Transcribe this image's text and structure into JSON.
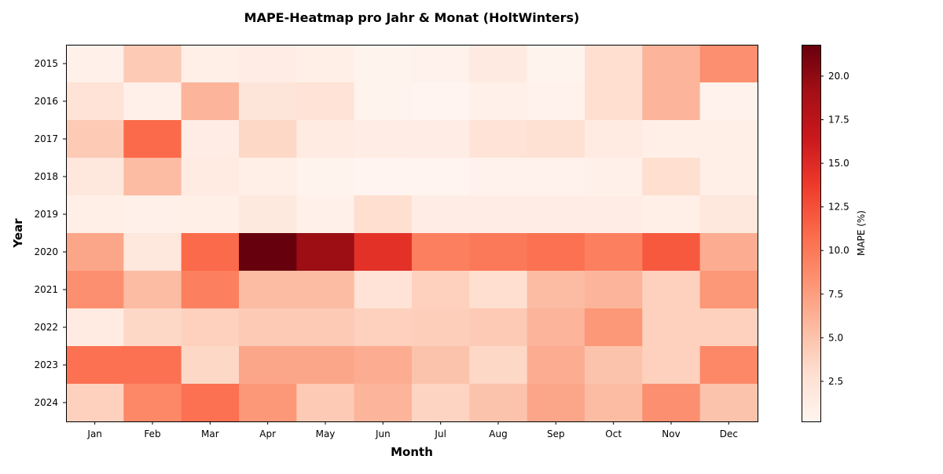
{
  "chart_data": {
    "type": "heatmap",
    "title": "MAPE-Heatmap pro Jahr & Monat (HoltWinters)",
    "xlabel": "Month",
    "ylabel": "Year",
    "x_categories": [
      "Jan",
      "Feb",
      "Mar",
      "Apr",
      "May",
      "Jun",
      "Jul",
      "Aug",
      "Sep",
      "Oct",
      "Nov",
      "Dec"
    ],
    "y_categories": [
      "2015",
      "2016",
      "2017",
      "2018",
      "2019",
      "2020",
      "2021",
      "2022",
      "2023",
      "2024"
    ],
    "values": [
      [
        0.8,
        4.5,
        1.0,
        1.2,
        1.0,
        0.4,
        0.6,
        1.6,
        0.4,
        3.0,
        6.0,
        8.5
      ],
      [
        2.5,
        0.8,
        6.0,
        2.2,
        2.5,
        0.4,
        0.3,
        0.8,
        0.6,
        3.0,
        6.0,
        0.6
      ],
      [
        4.5,
        11.0,
        1.2,
        3.5,
        1.5,
        1.2,
        1.3,
        2.5,
        2.8,
        1.5,
        1.0,
        1.0
      ],
      [
        2.0,
        5.5,
        1.5,
        1.0,
        0.5,
        0.3,
        0.3,
        0.6,
        0.6,
        0.7,
        3.0,
        1.0
      ],
      [
        1.0,
        0.8,
        1.0,
        1.7,
        0.8,
        3.0,
        1.2,
        1.2,
        1.2,
        1.2,
        1.0,
        2.0
      ],
      [
        7.0,
        2.0,
        11.0,
        21.8,
        19.5,
        14.5,
        9.5,
        10.0,
        10.5,
        9.5,
        12.0,
        6.5
      ],
      [
        8.5,
        5.5,
        9.5,
        5.5,
        5.5,
        2.5,
        4.0,
        3.0,
        5.5,
        6.0,
        4.0,
        8.0
      ],
      [
        1.5,
        3.5,
        4.0,
        4.5,
        4.5,
        4.0,
        4.2,
        4.5,
        6.0,
        8.0,
        4.0,
        4.0
      ],
      [
        10.5,
        10.5,
        3.5,
        7.0,
        7.0,
        6.5,
        5.0,
        3.5,
        6.5,
        5.0,
        4.0,
        9.0
      ],
      [
        4.0,
        9.0,
        10.5,
        8.0,
        4.5,
        6.0,
        3.8,
        5.0,
        7.0,
        5.5,
        8.5,
        5.0
      ]
    ],
    "colorbar": {
      "label": "MAPE (%)",
      "min": 0.2,
      "max": 21.8,
      "ticks": [
        2.5,
        5.0,
        7.5,
        10.0,
        12.5,
        15.0,
        17.5,
        20.0
      ],
      "tick_labels": [
        "2.5",
        "5.0",
        "7.5",
        "10.0",
        "12.5",
        "15.0",
        "17.5",
        "20.0"
      ],
      "colormap": "Reds"
    },
    "grid": false
  },
  "colors": {
    "frame": "#000000",
    "text": "#000000",
    "reds_stops": [
      "#fff5f0",
      "#fee0d2",
      "#fcbba1",
      "#fc9272",
      "#fb6a4a",
      "#ef3b2c",
      "#cb181d",
      "#a50f15",
      "#67000d"
    ]
  }
}
